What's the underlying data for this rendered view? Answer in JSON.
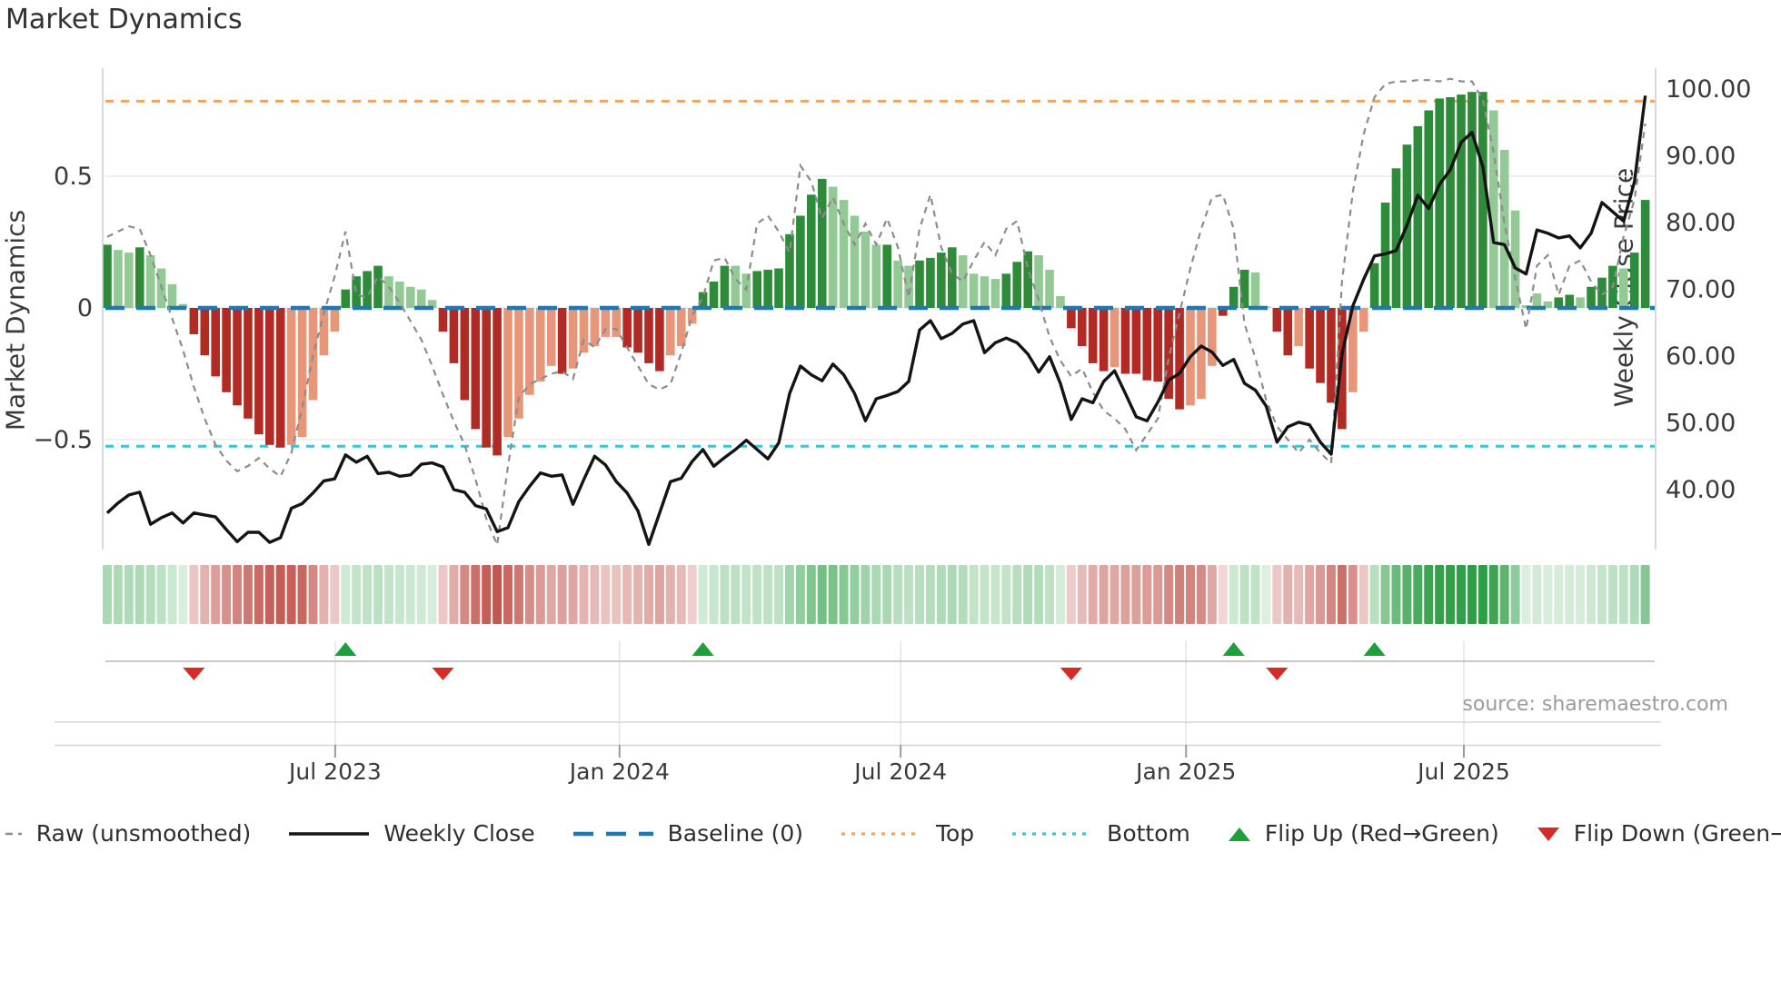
{
  "chart": {
    "title": "Market Dynamics",
    "source_note": "source: sharemaestro.com",
    "left_axis": {
      "label": "Market Dynamics",
      "ticks": [
        {
          "value": 0.5,
          "label": "0.5"
        },
        {
          "value": 0,
          "label": "0"
        },
        {
          "value": -0.5,
          "label": "−0.5"
        }
      ]
    },
    "right_axis": {
      "label": "Weekly Close Price",
      "ticks": [
        {
          "value": 100,
          "label": "100.00"
        },
        {
          "value": 90,
          "label": "90.00"
        },
        {
          "value": 80,
          "label": "80.00"
        },
        {
          "value": 70,
          "label": "70.00"
        },
        {
          "value": 60,
          "label": "60.00"
        },
        {
          "value": 50,
          "label": "50.00"
        },
        {
          "value": 40,
          "label": "40.00"
        }
      ]
    },
    "x_ticks": [
      {
        "label": "Jul 2023",
        "week": 21.05
      },
      {
        "label": "Jan 2024",
        "week": 47.3
      },
      {
        "label": "Jul 2024",
        "week": 73.25
      },
      {
        "label": "Jan 2025",
        "week": 99.6
      },
      {
        "label": "Jul 2025",
        "week": 125.25
      }
    ]
  },
  "colors": {
    "bar_dark_green": "#2e8b3a",
    "bar_light_green": "#93c994",
    "bar_dark_red": "#b12a24",
    "bar_salmon": "#e8967a",
    "baseline_blue": "#1f77b4",
    "top_orange": "#f2a45c",
    "bottom_cyan": "#3ac4da",
    "raw_gray": "#8c8c8c",
    "close_black": "#141414",
    "flip_up_green": "#1f9e3d",
    "flip_down_red": "#d62b26",
    "grid": "#e8e8f1",
    "spine": "#cfcfd8",
    "heat_green_base": "#2d9e44",
    "heat_red_base": "#c2564f"
  },
  "chart_data": {
    "type": "bar",
    "subtype": "combo-oscillator-price",
    "title": "Market Dynamics",
    "xlabel": "",
    "ylabel_left": "Market Dynamics",
    "ylabel_right": "Weekly Close Price",
    "n_weeks": 143,
    "osc_ylim": [
      -0.92,
      0.91
    ],
    "price_ylim": [
      31.0,
      103.2
    ],
    "grid": true,
    "legend_position": "bottom",
    "baseline": 0,
    "top_level": 0.785,
    "bottom_level": -0.525,
    "series": [
      {
        "name": "Market Dynamics bars",
        "type": "bar",
        "axis": "left",
        "values": [
          0.24,
          0.22,
          0.21,
          0.23,
          0.2,
          0.15,
          0.09,
          0.015,
          -0.1,
          -0.18,
          -0.26,
          -0.32,
          -0.37,
          -0.42,
          -0.48,
          -0.52,
          -0.53,
          -0.52,
          -0.49,
          -0.35,
          -0.18,
          -0.09,
          0.07,
          0.12,
          0.14,
          0.16,
          0.12,
          0.1,
          0.08,
          0.07,
          0.03,
          -0.09,
          -0.21,
          -0.35,
          -0.46,
          -0.53,
          -0.56,
          -0.49,
          -0.42,
          -0.33,
          -0.28,
          -0.22,
          -0.25,
          -0.23,
          -0.17,
          -0.145,
          -0.11,
          -0.11,
          -0.15,
          -0.17,
          -0.21,
          -0.24,
          -0.18,
          -0.145,
          -0.06,
          0.06,
          0.1,
          0.16,
          0.16,
          0.13,
          0.14,
          0.145,
          0.15,
          0.28,
          0.35,
          0.43,
          0.49,
          0.46,
          0.41,
          0.35,
          0.29,
          0.24,
          0.24,
          0.18,
          0.16,
          0.18,
          0.19,
          0.21,
          0.23,
          0.2,
          0.13,
          0.12,
          0.11,
          0.13,
          0.175,
          0.215,
          0.2,
          0.145,
          0.045,
          -0.077,
          -0.145,
          -0.21,
          -0.24,
          -0.225,
          -0.25,
          -0.25,
          -0.275,
          -0.28,
          -0.345,
          -0.385,
          -0.37,
          -0.345,
          -0.22,
          -0.03,
          0.08,
          0.145,
          0.135,
          0.005,
          -0.09,
          -0.18,
          -0.145,
          -0.23,
          -0.285,
          -0.36,
          -0.46,
          -0.32,
          -0.09,
          0.17,
          0.4,
          0.53,
          0.62,
          0.69,
          0.75,
          0.795,
          0.8,
          0.81,
          0.82,
          0.82,
          0.75,
          0.6,
          0.37,
          0.01,
          0.055,
          0.025,
          0.04,
          0.05,
          0.04,
          0.08,
          0.115,
          0.16,
          0.15,
          0.21,
          0.41
        ],
        "color_class": [
          "dg",
          "lg",
          "lg",
          "dg",
          "lg",
          "lg",
          "lg",
          "lg",
          "dr",
          "dr",
          "dr",
          "dr",
          "dr",
          "dr",
          "dr",
          "dr",
          "dr",
          "lr",
          "lr",
          "lr",
          "lr",
          "lr",
          "dg",
          "dg",
          "dg",
          "dg",
          "lg",
          "lg",
          "lg",
          "lg",
          "lg",
          "dr",
          "dr",
          "dr",
          "dr",
          "dr",
          "dr",
          "lr",
          "lr",
          "lr",
          "lr",
          "lr",
          "dr",
          "lr",
          "lr",
          "lr",
          "lr",
          "lr",
          "dr",
          "dr",
          "dr",
          "dr",
          "lr",
          "lr",
          "lr",
          "dg",
          "dg",
          "dg",
          "lg",
          "lg",
          "dg",
          "dg",
          "dg",
          "dg",
          "dg",
          "dg",
          "dg",
          "lg",
          "lg",
          "lg",
          "lg",
          "lg",
          "dg",
          "lg",
          "lg",
          "dg",
          "dg",
          "dg",
          "dg",
          "lg",
          "lg",
          "lg",
          "lg",
          "dg",
          "dg",
          "dg",
          "lg",
          "lg",
          "lg",
          "dr",
          "dr",
          "dr",
          "dr",
          "lr",
          "dr",
          "dr",
          "dr",
          "dr",
          "dr",
          "dr",
          "lr",
          "lr",
          "lr",
          "dr",
          "dg",
          "dg",
          "lg",
          "lg",
          "dr",
          "dr",
          "lr",
          "dr",
          "dr",
          "dr",
          "dr",
          "lr",
          "lr",
          "dg",
          "dg",
          "dg",
          "dg",
          "dg",
          "dg",
          "dg",
          "dg",
          "dg",
          "dg",
          "dg",
          "lg",
          "lg",
          "lg",
          "lg",
          "lg",
          "lg",
          "dg",
          "dg",
          "lg",
          "dg",
          "dg",
          "dg",
          "lg",
          "dg",
          "dg"
        ]
      },
      {
        "name": "Raw (unsmoothed)",
        "type": "line",
        "style": "dashed",
        "axis": "left",
        "values": [
          0.27,
          0.29,
          0.31,
          0.3,
          0.2,
          0.08,
          -0.04,
          -0.16,
          -0.3,
          -0.42,
          -0.52,
          -0.58,
          -0.62,
          -0.6,
          -0.57,
          -0.61,
          -0.64,
          -0.55,
          -0.38,
          -0.18,
          -0.02,
          0.12,
          0.29,
          0.05,
          0.04,
          0.12,
          0.08,
          0.02,
          -0.05,
          -0.12,
          -0.22,
          -0.33,
          -0.43,
          -0.52,
          -0.65,
          -0.8,
          -0.9,
          -0.6,
          -0.34,
          -0.29,
          -0.27,
          -0.25,
          -0.24,
          -0.27,
          -0.12,
          -0.15,
          -0.08,
          -0.08,
          -0.15,
          -0.22,
          -0.29,
          -0.31,
          -0.29,
          -0.17,
          -0.03,
          0.04,
          0.18,
          0.19,
          0.11,
          0.07,
          0.32,
          0.35,
          0.29,
          0.21,
          0.54,
          0.48,
          0.34,
          0.42,
          0.32,
          0.24,
          0.32,
          0.24,
          0.34,
          0.23,
          0.04,
          0.3,
          0.43,
          0.23,
          0.13,
          0.1,
          0.18,
          0.25,
          0.2,
          0.3,
          0.33,
          0.15,
          0.03,
          -0.11,
          -0.2,
          -0.26,
          -0.23,
          -0.32,
          -0.39,
          -0.42,
          -0.46,
          -0.54,
          -0.48,
          -0.42,
          -0.19,
          -0.02,
          0.15,
          0.3,
          0.42,
          0.43,
          0.3,
          -0.06,
          -0.19,
          -0.35,
          -0.45,
          -0.5,
          -0.55,
          -0.5,
          -0.55,
          -0.59,
          0.1,
          0.44,
          0.66,
          0.8,
          0.85,
          0.86,
          0.86,
          0.865,
          0.865,
          0.86,
          0.87,
          0.86,
          0.86,
          0.79,
          0.59,
          0.32,
          0.11,
          -0.08,
          0.16,
          0.2,
          0.05,
          0.16,
          0.18,
          0.1,
          0.05,
          0.08,
          0.27,
          0.41,
          0.7
        ]
      },
      {
        "name": "Weekly Close",
        "type": "line",
        "style": "solid",
        "axis": "right",
        "values": [
          36.5,
          38.0,
          39.2,
          39.6,
          34.8,
          35.8,
          36.5,
          35.0,
          36.5,
          36.2,
          35.9,
          34.0,
          32.2,
          33.6,
          33.6,
          32.1,
          32.8,
          37.2,
          37.9,
          39.5,
          41.3,
          41.6,
          45.2,
          44.1,
          45.0,
          42.4,
          42.6,
          42.0,
          42.2,
          43.8,
          44.0,
          43.4,
          40.0,
          39.6,
          37.6,
          37.1,
          33.7,
          34.3,
          38.2,
          40.5,
          42.5,
          42.0,
          42.2,
          37.8,
          41.5,
          45.0,
          43.7,
          41.2,
          39.5,
          36.8,
          31.8,
          36.5,
          41.2,
          41.7,
          44.2,
          46.0,
          43.5,
          44.8,
          46.0,
          47.4,
          46.0,
          44.6,
          47.0,
          54.4,
          58.5,
          57.2,
          56.3,
          58.8,
          57.2,
          54.4,
          50.3,
          53.6,
          54.1,
          54.7,
          56.2,
          63.9,
          65.3,
          62.6,
          63.4,
          64.8,
          65.3,
          60.5,
          62.0,
          62.7,
          62.0,
          60.3,
          57.6,
          59.9,
          55.9,
          50.5,
          53.6,
          53.0,
          56.2,
          57.8,
          54.4,
          50.9,
          50.3,
          53.1,
          56.4,
          57.4,
          59.9,
          61.5,
          60.6,
          58.6,
          59.5,
          55.9,
          54.9,
          52.5,
          47.1,
          49.4,
          50.1,
          49.7,
          47.1,
          45.3,
          60.3,
          67.5,
          71.5,
          75.0,
          75.3,
          75.8,
          79.6,
          84.1,
          82.1,
          85.7,
          87.9,
          92.0,
          93.5,
          88.4,
          77.0,
          76.7,
          73.2,
          72.3,
          78.9,
          78.4,
          77.7,
          78.0,
          76.2,
          78.4,
          83.0,
          81.6,
          80.2,
          86.1,
          99.0
        ]
      }
    ],
    "markers": {
      "flip_up_weeks": [
        22,
        55,
        104,
        117
      ],
      "flip_down_weeks": [
        8,
        31,
        89,
        108
      ]
    },
    "heat_strip": "color intensity derived from bar values: green for positive, red for negative"
  },
  "legend": {
    "items": [
      {
        "label": "Raw (unsmoothed)",
        "glyph": "dashed-gray-line"
      },
      {
        "label": "Weekly Close",
        "glyph": "solid-black-line"
      },
      {
        "label": "Baseline (0)",
        "glyph": "blue-long-dashes"
      },
      {
        "label": "Top",
        "glyph": "orange-dotted-line"
      },
      {
        "label": "Bottom",
        "glyph": "cyan-dotted-line"
      },
      {
        "label": "Flip Up (Red→Green)",
        "glyph": "green-up-triangle"
      },
      {
        "label": "Flip Down (Green→Red)",
        "glyph": "red-down-triangle"
      }
    ]
  }
}
